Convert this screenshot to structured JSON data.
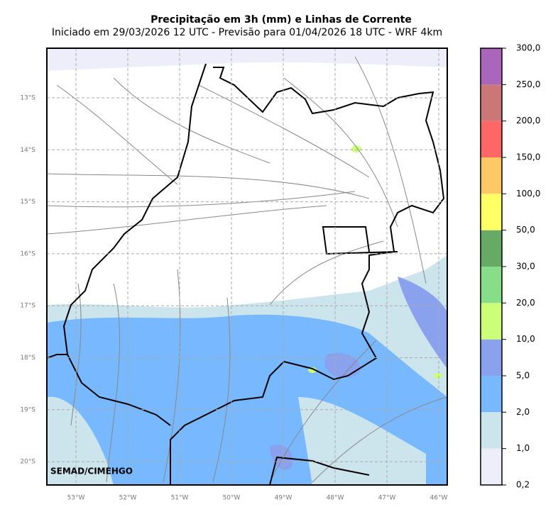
{
  "header": {
    "title": "Precipitação em 3h (mm) e Linhas de Corrente",
    "subtitle": "Iniciado em 29/03/2026 12 UTC - Previsão para 01/04/2026 18 UTC - WRF 4km"
  },
  "map": {
    "lat_labels": [
      "13°S",
      "14°S",
      "15°S",
      "16°S",
      "17°S",
      "18°S",
      "19°S",
      "20°S"
    ],
    "lon_labels": [
      "53°W",
      "52°W",
      "51°W",
      "50°W",
      "49°W",
      "48°W",
      "47°W",
      "46°W"
    ],
    "credit": "SEMAD/CIMEHGO"
  },
  "colorbar": {
    "labels": [
      "0,2",
      "1,0",
      "2,0",
      "5,0",
      "10,0",
      "20,0",
      "30,0",
      "50,0",
      "100,0",
      "150,0",
      "200,0",
      "250,0",
      "300,0"
    ],
    "colors": [
      "#eeeefa",
      "#cce4ec",
      "#77b8ff",
      "#8aa2ee",
      "#ccff77",
      "#88dd88",
      "#66aa66",
      "#ffff66",
      "#ffc866",
      "#ff6666",
      "#cc7777",
      "#aa66bb"
    ]
  }
}
